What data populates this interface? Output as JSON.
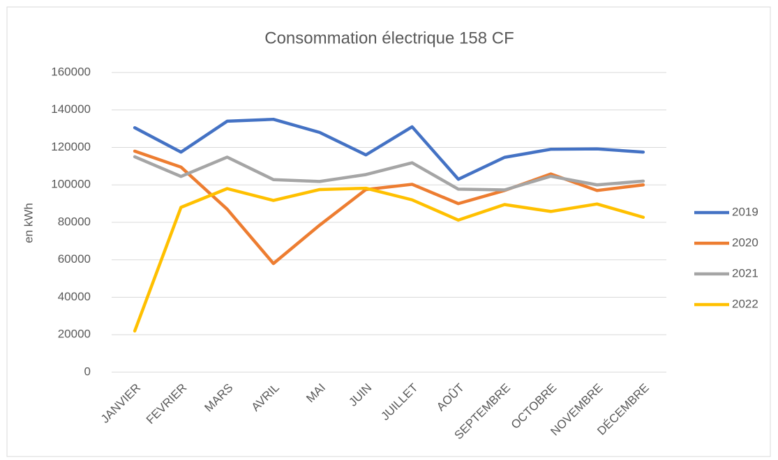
{
  "chart_data": {
    "type": "line",
    "title": "Consommation électrique 158 CF",
    "y_label": "en kWh",
    "categories": [
      "JANVIER",
      "FEVRIER",
      "MARS",
      "AVRIL",
      "MAI",
      "JUIN",
      "JUILLET",
      "AOÛT",
      "SEPTEMBRE",
      "OCTOBRE",
      "NOVEMBRE",
      "DÉCEMBRE"
    ],
    "series": [
      {
        "name": "2019",
        "color": "#4472c4",
        "values": [
          130500,
          117500,
          134000,
          135000,
          128000,
          116000,
          131000,
          103000,
          114700,
          119000,
          119200,
          117500
        ]
      },
      {
        "name": "2020",
        "color": "#ed7d31",
        "values": [
          118000,
          109500,
          87000,
          58000,
          78500,
          97500,
          100300,
          90000,
          97000,
          105800,
          97000,
          100000
        ]
      },
      {
        "name": "2021",
        "color": "#a5a5a5",
        "values": [
          115000,
          104500,
          114800,
          102800,
          101800,
          105500,
          111800,
          97700,
          97300,
          104600,
          100000,
          102000
        ]
      },
      {
        "name": "2022",
        "color": "#ffc000",
        "values": [
          22000,
          88000,
          98000,
          91700,
          97500,
          98200,
          92000,
          81200,
          89500,
          85800,
          89800,
          82700
        ]
      }
    ],
    "ylim": [
      0,
      160000
    ],
    "yticks": [
      0,
      20000,
      40000,
      60000,
      80000,
      100000,
      120000,
      140000,
      160000
    ],
    "grid": true,
    "legend": "right"
  }
}
